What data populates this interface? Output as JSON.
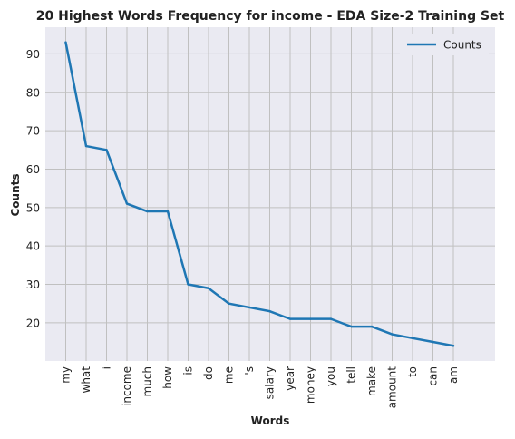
{
  "chart_data": {
    "type": "line",
    "title": "20 Highest Words Frequency for income - EDA Size-2 Training Set",
    "xlabel": "Words",
    "ylabel": "Counts",
    "categories": [
      "my",
      "what",
      "i",
      "income",
      "much",
      "how",
      "is",
      "do",
      "me",
      "'s",
      "salary",
      "year",
      "money",
      "you",
      "tell",
      "make",
      "amount",
      "to",
      "can",
      "am"
    ],
    "series": [
      {
        "name": "Counts",
        "values": [
          93,
          66,
          65,
          51,
          49,
          49,
          30,
          29,
          25,
          24,
          23,
          21,
          21,
          21,
          19,
          19,
          17,
          16,
          15,
          14
        ],
        "color": "#1f77b4"
      }
    ],
    "yticks": [
      20,
      30,
      40,
      50,
      60,
      70,
      80,
      90
    ],
    "ylim": [
      10.05,
      96.95
    ],
    "grid": true,
    "legend": "top-right",
    "background_color": "#eaeaf2",
    "grid_color": "#c0c0c0"
  }
}
